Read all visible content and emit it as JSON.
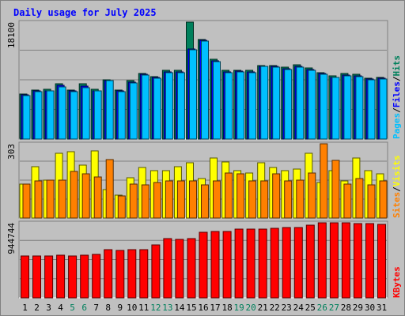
{
  "chart_data": {
    "type": "bar",
    "title": "Daily usage for July 2025",
    "days": [
      "1",
      "2",
      "3",
      "4",
      "5",
      "6",
      "7",
      "8",
      "9",
      "10",
      "11",
      "12",
      "13",
      "14",
      "15",
      "16",
      "17",
      "18",
      "19",
      "20",
      "21",
      "22",
      "23",
      "24",
      "25",
      "26",
      "27",
      "28",
      "29",
      "30",
      "31"
    ],
    "weekend_days": [
      "5",
      "6",
      "12",
      "13",
      "19",
      "20",
      "26",
      "27"
    ],
    "panels": [
      {
        "name": "hits-files-pages",
        "ymax_label": "18100",
        "ymax": 18100,
        "series": [
          {
            "name": "Hits",
            "color": "#00805c",
            "values": [
              7000,
              7600,
              7700,
              8600,
              7600,
              8500,
              7700,
              9200,
              7600,
              9000,
              10200,
              9700,
              10600,
              10600,
              18100,
              15400,
              12300,
              10600,
              10600,
              10600,
              11400,
              11400,
              11100,
              11500,
              11000,
              10300,
              9800,
              10100,
              10000,
              9400,
              9500
            ]
          },
          {
            "name": "Files",
            "color": "#0000ff",
            "values": [
              6800,
              7400,
              7500,
              8300,
              7400,
              8200,
              7500,
              9100,
              7400,
              8800,
              10000,
              9500,
              10400,
              10400,
              13900,
              15300,
              12100,
              10400,
              10500,
              10400,
              11300,
              11200,
              10900,
              11200,
              10800,
              10100,
              9600,
              9900,
              9800,
              9300,
              9400
            ]
          },
          {
            "name": "Pages",
            "color": "#00c0ff",
            "values": [
              6700,
              7300,
              7400,
              8100,
              7300,
              8000,
              7400,
              9000,
              7300,
              8700,
              9900,
              9400,
              10300,
              10300,
              13800,
              15200,
              12000,
              10300,
              10400,
              10300,
              11200,
              11100,
              10800,
              11100,
              10700,
              10000,
              9500,
              9800,
              9700,
              9200,
              9300
            ]
          }
        ],
        "side_labels": [
          {
            "text": "Pages",
            "color": "#00c0ff"
          },
          {
            "text": "/",
            "color": "#000000"
          },
          {
            "text": "Files",
            "color": "#0000ff"
          },
          {
            "text": "/",
            "color": "#000000"
          },
          {
            "text": "Hits",
            "color": "#00805c"
          }
        ]
      },
      {
        "name": "visits-sites",
        "ymax_label": "303",
        "ymax": 303,
        "series": [
          {
            "name": "Visits",
            "color": "#ffff00",
            "values": [
              140,
              210,
              155,
              265,
              270,
              215,
              275,
              115,
              95,
              165,
              205,
              195,
              195,
              210,
              225,
              160,
              245,
              230,
              195,
              185,
              225,
              205,
              195,
              200,
              265,
              145,
              195,
              150,
              245,
              195,
              180
            ]
          },
          {
            "name": "Sites",
            "color": "#ff8000",
            "values": [
              138,
              150,
              155,
              155,
              190,
              180,
              168,
              238,
              90,
              140,
              135,
              145,
              150,
              150,
              150,
              135,
              150,
              185,
              180,
              150,
              150,
              180,
              150,
              155,
              185,
              303,
              235,
              140,
              160,
              135,
              150
            ]
          }
        ],
        "side_labels": [
          {
            "text": "Sites",
            "color": "#ff8000"
          },
          {
            "text": "/",
            "color": "#000000"
          },
          {
            "text": "Visits",
            "color": "#ffff00"
          }
        ]
      },
      {
        "name": "kbytes",
        "ymax_label": "944744",
        "ymax": 944744,
        "series": [
          {
            "name": "KBytes",
            "color": "#ff0000",
            "values": [
              530000,
              530000,
              530000,
              540000,
              530000,
              540000,
              545000,
              610000,
              595000,
              605000,
              610000,
              665000,
              750000,
              740000,
              750000,
              830000,
              835000,
              840000,
              865000,
              870000,
              870000,
              875000,
              885000,
              890000,
              910000,
              944744,
              940000,
              940000,
              935000,
              935000,
              925000
            ]
          }
        ],
        "side_labels": [
          {
            "text": "KBytes",
            "color": "#ff0000"
          }
        ]
      }
    ]
  }
}
